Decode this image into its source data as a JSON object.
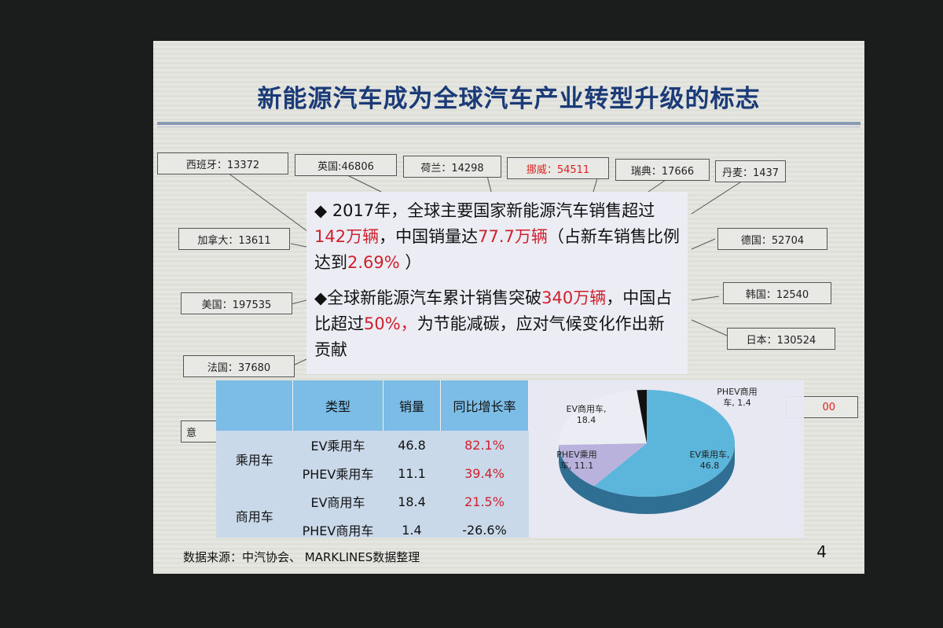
{
  "slide": {
    "title": "新能源汽车成为全球汽车产业转型升级的标志",
    "page_number": "4",
    "source": "数据来源：中汽协会、 MARKLINES数据整理"
  },
  "countries": [
    {
      "label": "西班牙：13372"
    },
    {
      "label": "英国:46806"
    },
    {
      "label": "荷兰：14298"
    },
    {
      "label": "挪威：54511",
      "highlight": true
    },
    {
      "label": "瑞典：17666"
    },
    {
      "label": "丹麦：1437"
    },
    {
      "label": "加拿大：13611"
    },
    {
      "label": "德国：52704"
    },
    {
      "label": "美国：197535"
    },
    {
      "label": "韩国：12540"
    },
    {
      "label": "日本：130524"
    },
    {
      "label": "法国：37680"
    },
    {
      "label": "意"
    },
    {
      "label": "00",
      "highlight": true
    }
  ],
  "bullets": {
    "b1": {
      "t1": "◆ 2017年，全球主要国家新能源汽车销售超过",
      "r1": "142万辆",
      "t2": "，中国销量达",
      "r2": "77.7万辆",
      "t3": "（占新车销售比例达到",
      "r3": "2.69%",
      "t4": " ）"
    },
    "b2": {
      "t1": "◆全球新能源汽车累计销售突破",
      "r1": "340万辆",
      "t2": "，中国占比超过",
      "r2": "50%，",
      "t3": "为节能减碳，应对气候变化作出新贡献"
    }
  },
  "table": {
    "headers": [
      "",
      "类型",
      "销量",
      "同比增长率"
    ],
    "groups": [
      "乘用车",
      "商用车"
    ],
    "rows": [
      {
        "type": "EV乘用车",
        "sales": "46.8",
        "growth": "82.1%"
      },
      {
        "type": "PHEV乘用车",
        "sales": "11.1",
        "growth": "39.4%"
      },
      {
        "type": "EV商用车",
        "sales": "18.4",
        "growth": "21.5%"
      },
      {
        "type": "PHEV商用车",
        "sales": "1.4",
        "growth": "-26.6%"
      }
    ]
  },
  "chart_data": {
    "type": "pie",
    "categories": [
      "EV乘用车",
      "PHEV乘用车",
      "EV商用车",
      "PHEV商用车"
    ],
    "values": [
      46.8,
      11.1,
      18.4,
      1.4
    ],
    "labels": [
      "EV乘用车, 46.8",
      "PHEV乘用车, 11.1",
      "EV商用车, 18.4",
      "PHEV商用车, 1.4"
    ],
    "colors": [
      "#5cb6dc",
      "#b9b2dc",
      "#ececf4",
      "#111111"
    ]
  }
}
